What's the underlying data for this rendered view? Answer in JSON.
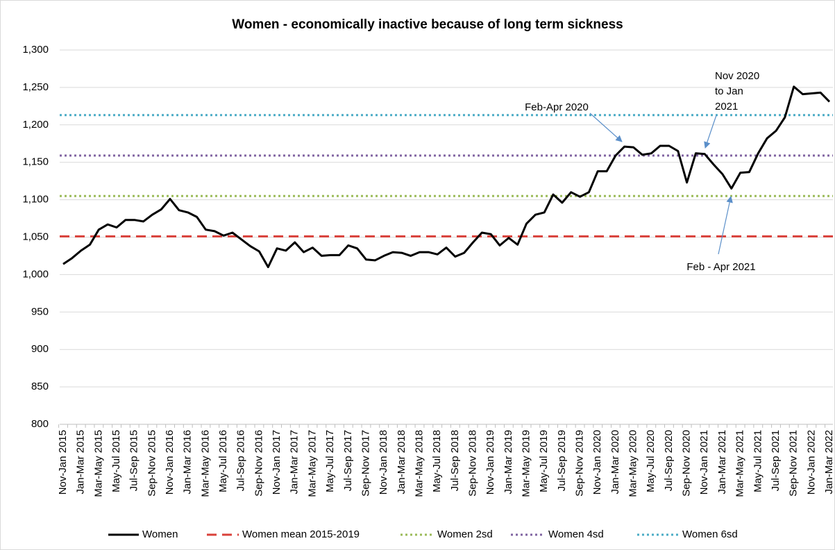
{
  "chart_data": {
    "type": "line",
    "title": "Women - economically inactive because of long term sickness",
    "categories": [
      "Nov-Jan 2015",
      null,
      "Jan-Mar 2015",
      null,
      "Mar-May 2015",
      null,
      "May-Jul 2015",
      null,
      "Jul-Sep 2015",
      null,
      "Sep-Nov 2015",
      null,
      "Nov-Jan 2016",
      null,
      "Jan-Mar 2016",
      null,
      "Mar-May 2016",
      null,
      "May-Jul 2016",
      null,
      "Jul-Sep 2016",
      null,
      "Sep-Nov 2016",
      null,
      "Nov-Jan 2017",
      null,
      "Jan-Mar 2017",
      null,
      "Mar-May 2017",
      null,
      "May-Jul 2017",
      null,
      "Jul-Sep 2017",
      null,
      "Sep-Nov 2017",
      null,
      "Nov-Jan 2018",
      null,
      "Jan-Mar 2018",
      null,
      "Mar-May 2018",
      null,
      "May-Jul 2018",
      null,
      "Jul-Sep 2018",
      null,
      "Sep-Nov 2018",
      null,
      "Nov-Jan 2019",
      null,
      "Jan-Mar 2019",
      null,
      "Mar-May 2019",
      null,
      "May-Jul 2019",
      null,
      "Jul-Sep 2019",
      null,
      "Sep-Nov 2019",
      null,
      "Nov-Jan 2020",
      null,
      "Jan-Mar 2020",
      null,
      "Mar-May 2020",
      null,
      "May-Jul 2020",
      null,
      "Jul-Sep 2020",
      null,
      "Sep-Nov 2020",
      null,
      "Nov-Jan 2021",
      null,
      "Jan-Mar 2021",
      null,
      "Mar-May 2021",
      null,
      "May-Jul 2021",
      null,
      "Jul-Sep 2021",
      null,
      "Sep-Nov 2021",
      null,
      "Nov-Jan 2022",
      null,
      "Jan-Mar 2022"
    ],
    "series": [
      {
        "name": "Women",
        "color": "#000000",
        "values": [
          1014,
          1022,
          1032,
          1040,
          1060,
          1067,
          1063,
          1073,
          1073,
          1071,
          1080,
          1087,
          1101,
          1086,
          1083,
          1077,
          1060,
          1058,
          1052,
          1056,
          1047,
          1038,
          1031,
          1010,
          1035,
          1032,
          1043,
          1030,
          1036,
          1025,
          1026,
          1026,
          1039,
          1035,
          1020,
          1019,
          1025,
          1030,
          1029,
          1025,
          1030,
          1030,
          1027,
          1036,
          1024,
          1029,
          1043,
          1056,
          1054,
          1039,
          1049,
          1040,
          1068,
          1080,
          1083,
          1107,
          1096,
          1110,
          1104,
          1110,
          1138,
          1138,
          1159,
          1171,
          1170,
          1160,
          1162,
          1172,
          1172,
          1165,
          1123,
          1162,
          1161,
          1147,
          1134,
          1115,
          1136,
          1137,
          1162,
          1182,
          1192,
          1210,
          1251,
          1241,
          1242,
          1243,
          1231
        ]
      }
    ],
    "reference_lines": [
      {
        "name": "Women mean 2015-2019",
        "color": "#d9413a",
        "value": 1051,
        "dash": "dashed"
      },
      {
        "name": "Women 2sd",
        "color": "#9bbb59",
        "value": 1105,
        "dash": "dotted"
      },
      {
        "name": "Women 4sd",
        "color": "#8064a2",
        "value": 1159,
        "dash": "dotted"
      },
      {
        "name": "Women 6sd",
        "color": "#4bacc6",
        "value": 1213,
        "dash": "dotted"
      }
    ],
    "ylim": [
      800,
      1300
    ],
    "yticks": [
      800,
      850,
      900,
      950,
      {
        "value": 1000,
        "label": "1,000"
      },
      {
        "value": 1050,
        "label": "1,050"
      },
      {
        "value": 1100,
        "label": "1,100"
      },
      {
        "value": 1150,
        "label": "1,150"
      },
      {
        "value": 1200,
        "label": "1,200"
      },
      {
        "value": 1250,
        "label": "1,250"
      },
      {
        "value": 1300,
        "label": "1,300"
      }
    ],
    "grid": true,
    "legend": "bottom",
    "annotations": [
      {
        "lines": [
          "Feb-Apr 2020"
        ]
      },
      {
        "lines": [
          "Nov 2020",
          "to Jan",
          "2021"
        ]
      },
      {
        "lines": [
          "Feb - Apr 2021"
        ]
      }
    ]
  }
}
